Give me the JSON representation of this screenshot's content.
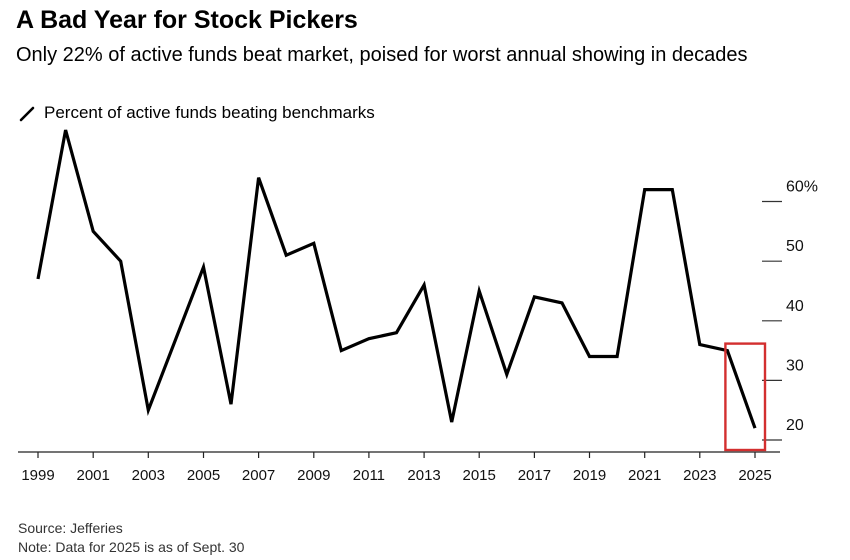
{
  "chart_data": {
    "type": "line",
    "title": "A Bad Year for Stock Pickers",
    "subtitle": "Only 22% of active funds beat market, poised for worst annual showing in decades",
    "legend": {
      "label": "Percent of active funds beating benchmarks",
      "placement": "top-left"
    },
    "x": [
      1999,
      2000,
      2001,
      2002,
      2003,
      2004,
      2005,
      2006,
      2007,
      2008,
      2009,
      2010,
      2011,
      2012,
      2013,
      2014,
      2015,
      2016,
      2017,
      2018,
      2019,
      2020,
      2021,
      2022,
      2023,
      2024,
      2025
    ],
    "series": [
      {
        "name": "Percent of active funds beating benchmarks",
        "values": [
          47,
          72,
          55,
          50,
          25,
          37,
          49,
          26,
          64,
          51,
          53,
          35,
          37,
          38,
          46,
          23,
          45,
          31,
          44,
          43,
          34,
          34,
          62,
          62,
          36,
          35,
          22
        ]
      }
    ],
    "x_tick_labels": [
      "1999",
      "2001",
      "2003",
      "2005",
      "2007",
      "2009",
      "2011",
      "2013",
      "2015",
      "2017",
      "2019",
      "2021",
      "2023",
      "2025"
    ],
    "y_tick_labels": [
      "20",
      "30",
      "40",
      "50",
      "60%"
    ],
    "y_ticks": [
      20,
      30,
      40,
      50,
      60
    ],
    "ylim": [
      20,
      72
    ],
    "xlim": [
      1999,
      2025
    ],
    "y_axis_position": "right",
    "grid": false,
    "line_color": "#000000",
    "highlight": {
      "from": 2024,
      "to": 2025,
      "color": "#d32f2f"
    }
  },
  "footer": {
    "source": "Source: Jefferies",
    "note": "Note: Data for 2025 is as of Sept. 30"
  }
}
